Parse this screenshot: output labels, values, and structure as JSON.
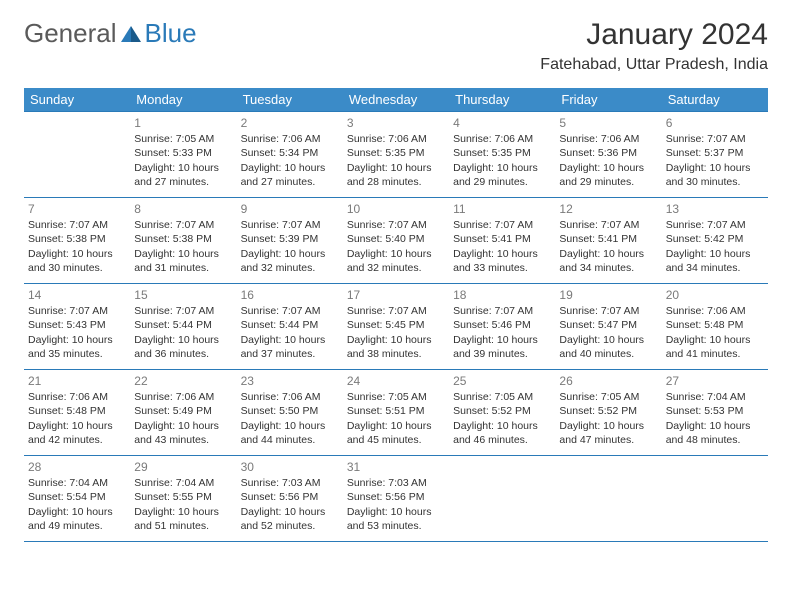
{
  "logo": {
    "general": "General",
    "blue": "Blue"
  },
  "title": "January 2024",
  "location": "Fatehabad, Uttar Pradesh, India",
  "colors": {
    "header_bg": "#3b8bc8",
    "header_text": "#ffffff",
    "border": "#2a7ab8",
    "daynum": "#7a7a7a",
    "text": "#333333",
    "logo_gray": "#5a5a5a",
    "logo_blue": "#2a7ab8"
  },
  "weekdays": [
    "Sunday",
    "Monday",
    "Tuesday",
    "Wednesday",
    "Thursday",
    "Friday",
    "Saturday"
  ],
  "first_weekday_index": 1,
  "days": [
    {
      "n": 1,
      "sr": "7:05 AM",
      "ss": "5:33 PM",
      "dl": "10 hours and 27 minutes."
    },
    {
      "n": 2,
      "sr": "7:06 AM",
      "ss": "5:34 PM",
      "dl": "10 hours and 27 minutes."
    },
    {
      "n": 3,
      "sr": "7:06 AM",
      "ss": "5:35 PM",
      "dl": "10 hours and 28 minutes."
    },
    {
      "n": 4,
      "sr": "7:06 AM",
      "ss": "5:35 PM",
      "dl": "10 hours and 29 minutes."
    },
    {
      "n": 5,
      "sr": "7:06 AM",
      "ss": "5:36 PM",
      "dl": "10 hours and 29 minutes."
    },
    {
      "n": 6,
      "sr": "7:07 AM",
      "ss": "5:37 PM",
      "dl": "10 hours and 30 minutes."
    },
    {
      "n": 7,
      "sr": "7:07 AM",
      "ss": "5:38 PM",
      "dl": "10 hours and 30 minutes."
    },
    {
      "n": 8,
      "sr": "7:07 AM",
      "ss": "5:38 PM",
      "dl": "10 hours and 31 minutes."
    },
    {
      "n": 9,
      "sr": "7:07 AM",
      "ss": "5:39 PM",
      "dl": "10 hours and 32 minutes."
    },
    {
      "n": 10,
      "sr": "7:07 AM",
      "ss": "5:40 PM",
      "dl": "10 hours and 32 minutes."
    },
    {
      "n": 11,
      "sr": "7:07 AM",
      "ss": "5:41 PM",
      "dl": "10 hours and 33 minutes."
    },
    {
      "n": 12,
      "sr": "7:07 AM",
      "ss": "5:41 PM",
      "dl": "10 hours and 34 minutes."
    },
    {
      "n": 13,
      "sr": "7:07 AM",
      "ss": "5:42 PM",
      "dl": "10 hours and 34 minutes."
    },
    {
      "n": 14,
      "sr": "7:07 AM",
      "ss": "5:43 PM",
      "dl": "10 hours and 35 minutes."
    },
    {
      "n": 15,
      "sr": "7:07 AM",
      "ss": "5:44 PM",
      "dl": "10 hours and 36 minutes."
    },
    {
      "n": 16,
      "sr": "7:07 AM",
      "ss": "5:44 PM",
      "dl": "10 hours and 37 minutes."
    },
    {
      "n": 17,
      "sr": "7:07 AM",
      "ss": "5:45 PM",
      "dl": "10 hours and 38 minutes."
    },
    {
      "n": 18,
      "sr": "7:07 AM",
      "ss": "5:46 PM",
      "dl": "10 hours and 39 minutes."
    },
    {
      "n": 19,
      "sr": "7:07 AM",
      "ss": "5:47 PM",
      "dl": "10 hours and 40 minutes."
    },
    {
      "n": 20,
      "sr": "7:06 AM",
      "ss": "5:48 PM",
      "dl": "10 hours and 41 minutes."
    },
    {
      "n": 21,
      "sr": "7:06 AM",
      "ss": "5:48 PM",
      "dl": "10 hours and 42 minutes."
    },
    {
      "n": 22,
      "sr": "7:06 AM",
      "ss": "5:49 PM",
      "dl": "10 hours and 43 minutes."
    },
    {
      "n": 23,
      "sr": "7:06 AM",
      "ss": "5:50 PM",
      "dl": "10 hours and 44 minutes."
    },
    {
      "n": 24,
      "sr": "7:05 AM",
      "ss": "5:51 PM",
      "dl": "10 hours and 45 minutes."
    },
    {
      "n": 25,
      "sr": "7:05 AM",
      "ss": "5:52 PM",
      "dl": "10 hours and 46 minutes."
    },
    {
      "n": 26,
      "sr": "7:05 AM",
      "ss": "5:52 PM",
      "dl": "10 hours and 47 minutes."
    },
    {
      "n": 27,
      "sr": "7:04 AM",
      "ss": "5:53 PM",
      "dl": "10 hours and 48 minutes."
    },
    {
      "n": 28,
      "sr": "7:04 AM",
      "ss": "5:54 PM",
      "dl": "10 hours and 49 minutes."
    },
    {
      "n": 29,
      "sr": "7:04 AM",
      "ss": "5:55 PM",
      "dl": "10 hours and 51 minutes."
    },
    {
      "n": 30,
      "sr": "7:03 AM",
      "ss": "5:56 PM",
      "dl": "10 hours and 52 minutes."
    },
    {
      "n": 31,
      "sr": "7:03 AM",
      "ss": "5:56 PM",
      "dl": "10 hours and 53 minutes."
    }
  ],
  "labels": {
    "sunrise": "Sunrise:",
    "sunset": "Sunset:",
    "daylight": "Daylight:"
  }
}
